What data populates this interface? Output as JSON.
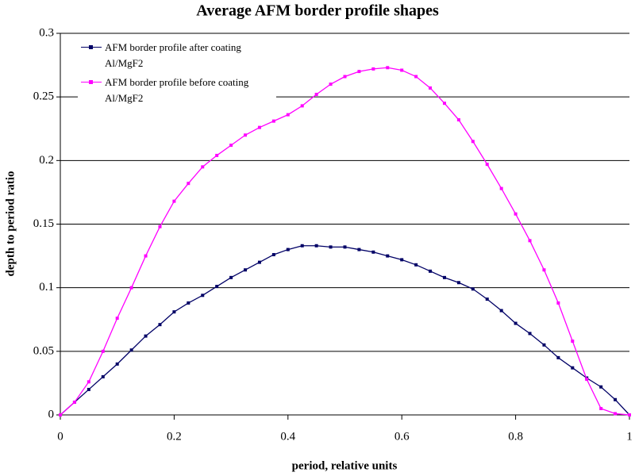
{
  "chart_data": {
    "type": "line",
    "title": "Average AFM border profile shapes",
    "x_label": "period, relative units",
    "y_label": "depth to period ratio",
    "x": [
      0,
      0.025,
      0.05,
      0.075,
      0.1,
      0.125,
      0.15,
      0.175,
      0.2,
      0.225,
      0.25,
      0.275,
      0.3,
      0.325,
      0.35,
      0.375,
      0.4,
      0.425,
      0.45,
      0.475,
      0.5,
      0.525,
      0.55,
      0.575,
      0.6,
      0.625,
      0.65,
      0.675,
      0.7,
      0.725,
      0.75,
      0.775,
      0.8,
      0.825,
      0.85,
      0.875,
      0.9,
      0.925,
      0.95,
      0.975,
      1
    ],
    "series": [
      {
        "name": "AFM border profile after coating Al/MgF2",
        "color": "#000066",
        "values": [
          0,
          0.01,
          0.02,
          0.03,
          0.04,
          0.051,
          0.062,
          0.071,
          0.081,
          0.088,
          0.094,
          0.101,
          0.108,
          0.114,
          0.12,
          0.126,
          0.13,
          0.133,
          0.133,
          0.132,
          0.132,
          0.13,
          0.128,
          0.125,
          0.122,
          0.118,
          0.113,
          0.108,
          0.104,
          0.099,
          0.091,
          0.082,
          0.072,
          0.064,
          0.055,
          0.045,
          0.037,
          0.029,
          0.022,
          0.012,
          0
        ]
      },
      {
        "name": "AFM border profile before coating Al/MgF2",
        "color": "#ff00ff",
        "values": [
          0,
          0.01,
          0.026,
          0.05,
          0.076,
          0.1,
          0.125,
          0.148,
          0.168,
          0.182,
          0.195,
          0.204,
          0.212,
          0.22,
          0.226,
          0.231,
          0.236,
          0.243,
          0.252,
          0.26,
          0.266,
          0.27,
          0.272,
          0.273,
          0.271,
          0.266,
          0.257,
          0.245,
          0.232,
          0.215,
          0.197,
          0.178,
          0.158,
          0.137,
          0.114,
          0.088,
          0.058,
          0.028,
          0.005,
          0.001,
          0
        ]
      }
    ],
    "xlim": [
      0,
      1
    ],
    "xticks": [
      0,
      0.2,
      0.4,
      0.6,
      0.8,
      1
    ],
    "ylim": [
      0,
      0.3
    ],
    "yticks": [
      0,
      0.05,
      0.1,
      0.15,
      0.2,
      0.25,
      0.3
    ],
    "grid": true,
    "legend": "upper left"
  }
}
